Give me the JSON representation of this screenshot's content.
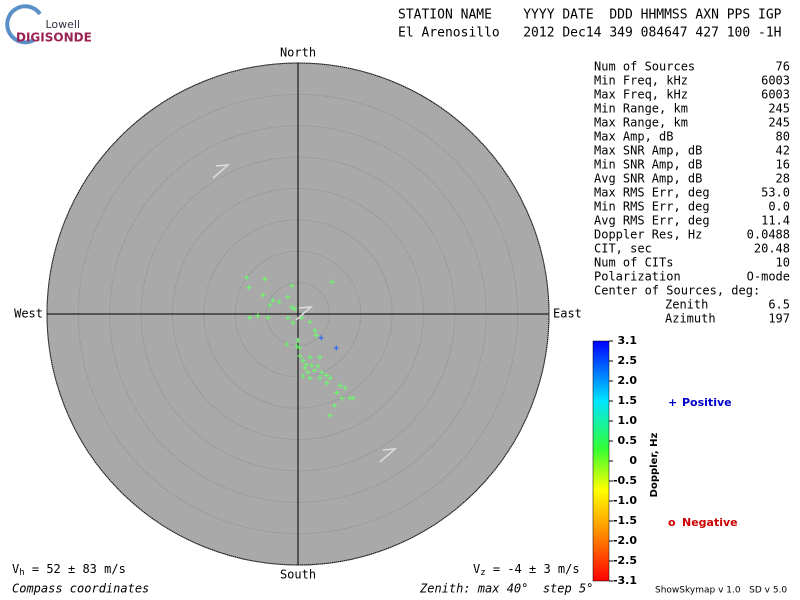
{
  "logo": {
    "top": "Lowell",
    "bottom": "DIGISONDE"
  },
  "header": {
    "line1": "STATION NAME    YYYY DATE  DDD HHMMSS AXN PPS IGP",
    "line2": "El Arenosillo   2012 Dec14 349 084647 427 100 -1H"
  },
  "stats": [
    [
      "Num of Sources",
      "76"
    ],
    [
      "Min Freq, kHz",
      "6003"
    ],
    [
      "Max Freq, kHz",
      "6003"
    ],
    [
      "Min Range, km",
      "245"
    ],
    [
      "Max Range, km",
      "245"
    ],
    [
      "Max Amp, dB",
      "80"
    ],
    [
      "Max SNR Amp, dB",
      "42"
    ],
    [
      "Min SNR Amp, dB",
      "16"
    ],
    [
      "Avg SNR Amp, dB",
      "28"
    ],
    [
      "Max RMS Err, deg",
      "53.0"
    ],
    [
      "Min RMS Err, deg",
      "0.0"
    ],
    [
      "Avg RMS Err, deg",
      "11.4"
    ],
    [
      "Doppler Res, Hz",
      "0.0488"
    ],
    [
      "CIT, sec",
      "20.48"
    ],
    [
      "Num of CITs",
      "10"
    ],
    [
      "Polarization",
      "O-mode"
    ]
  ],
  "center": {
    "title": "Center of Sources, deg:",
    "rows": [
      [
        "Zenith",
        "6.5"
      ],
      [
        "Azimuth",
        "197"
      ]
    ]
  },
  "chart_data": {
    "type": "polar_scatter",
    "directions": {
      "north": "North",
      "south": "South",
      "west": "West",
      "east": "East"
    },
    "rlim": [
      0,
      40
    ],
    "rticks": [
      5,
      10,
      15,
      20,
      25,
      30,
      35,
      40
    ],
    "series": [
      {
        "color": "#66ff66",
        "x": [
          -8.2,
          -5.3,
          -7.8,
          -1.0,
          5.4,
          -5.6,
          -4.5,
          -4.0,
          -3.0,
          -1.6,
          -1.0,
          -0.5,
          -7.7,
          -6.4,
          -4.8,
          -1.6,
          -0.8,
          0.6,
          1.9,
          2.7,
          2.9,
          -0.2,
          0.2,
          -1.8,
          0.3,
          0.8,
          1.9,
          3.5,
          1.1,
          1.6,
          2.6,
          3.2,
          3.8,
          4.5,
          5.1,
          0.8,
          1.9,
          4.6,
          6.7,
          7.5,
          6.2,
          8.3,
          7.0,
          5.8,
          5.1,
          8.8,
          3.5,
          2.2,
          1.3,
          0.0
        ],
        "y": [
          5.8,
          5.6,
          4.2,
          4.5,
          5.1,
          3.0,
          1.4,
          2.2,
          1.9,
          2.7,
          1.1,
          0.8,
          -0.6,
          -0.3,
          -0.6,
          -0.6,
          -1.4,
          -0.6,
          -1.3,
          -2.6,
          -3.4,
          -5.1,
          -5.4,
          -4.8,
          -6.7,
          -7.4,
          -6.9,
          -6.9,
          -8.6,
          -9.3,
          -9.0,
          -8.3,
          -9.3,
          -9.8,
          -10.2,
          -9.9,
          -10.2,
          -11.0,
          -11.4,
          -11.8,
          -12.5,
          -13.4,
          -13.4,
          -14.6,
          -16.2,
          -13.4,
          -10.2,
          -8.2,
          -8.0,
          -4.2
        ]
      },
      {
        "color": "#1e64ff",
        "x": [
          3.7,
          6.1
        ],
        "y": [
          -3.8,
          -5.4
        ]
      }
    ],
    "colorbar": {
      "label": "Doppler, Hz",
      "ticks": [
        3.1,
        {
          "value": 2.5,
          "label": "2.5"
        },
        {
          "value": 2,
          "label": "2.0"
        },
        1.5,
        {
          "value": 1,
          "label": "1.0"
        },
        0.5,
        0,
        -0.5,
        {
          "value": -1,
          "label": "-1.0"
        },
        -1.5,
        {
          "value": -2,
          "label": "-2.0"
        },
        -2.5,
        -3.1
      ]
    },
    "legend": {
      "positive": {
        "symbol": "+",
        "label": "Positive",
        "color": "#0000cc"
      },
      "negative": {
        "symbol": "o",
        "label": "Negative",
        "color": "#cc0000"
      }
    }
  },
  "footer": {
    "vh": {
      "symbol": "V",
      "sub": "h",
      "rest": " = 52 ± 83 m/s"
    },
    "vz": {
      "symbol": "V",
      "sub": "z",
      "rest": " = -4 ± 3 m/s"
    },
    "coords": "Compass coordinates",
    "zenith": "Zenith: max 40°  step 5°",
    "version": "ShowSkymap v 1.0   SD v 5.0"
  }
}
